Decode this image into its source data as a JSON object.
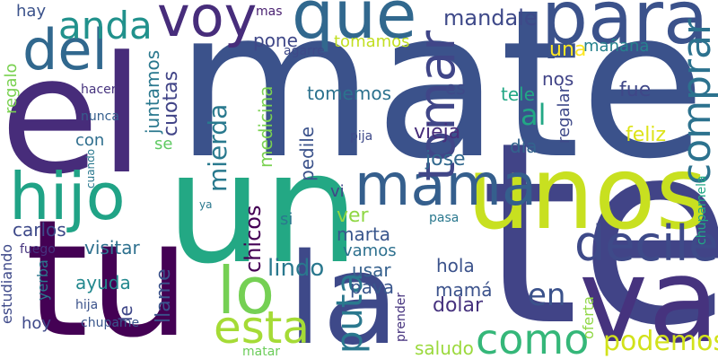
{
  "words": [
    {
      "id": "mate",
      "text": "mate",
      "color": "#3b528b"
    },
    {
      "id": "el",
      "text": "el",
      "color": "#472c7a"
    },
    {
      "id": "un",
      "text": "un",
      "color": "#23a884"
    },
    {
      "id": "te",
      "text": "te",
      "color": "#414487"
    },
    {
      "id": "tu",
      "text": "tu",
      "color": "#440154"
    },
    {
      "id": "unos",
      "text": "unos",
      "color": "#c8e020"
    },
    {
      "id": "la",
      "text": "la",
      "color": "#3e4989"
    },
    {
      "id": "va",
      "text": "va",
      "color": "#46337e"
    },
    {
      "id": "para",
      "text": "para",
      "color": "#3b528b"
    },
    {
      "id": "que",
      "text": "que",
      "color": "#31688e"
    },
    {
      "id": "voy",
      "text": "voy",
      "color": "#472d7b"
    },
    {
      "id": "del",
      "text": "del",
      "color": "#31688e"
    },
    {
      "id": "hijo",
      "text": "hijo",
      "color": "#20a386"
    },
    {
      "id": "mama",
      "text": "mama",
      "color": "#355f8d"
    },
    {
      "id": "lo",
      "text": "lo",
      "color": "#75d054"
    },
    {
      "id": "esta",
      "text": "esta",
      "color": "#a5db36"
    },
    {
      "id": "como",
      "text": "como",
      "color": "#35b779"
    },
    {
      "id": "decile",
      "text": "decile",
      "color": "#3e4a89"
    },
    {
      "id": "comprar",
      "text": "comprar",
      "color": "#2c728e"
    },
    {
      "id": "tomar",
      "text": "tomar",
      "color": "#404688"
    },
    {
      "id": "anda",
      "text": "anda",
      "color": "#21918c"
    },
    {
      "id": "puta",
      "text": "puta",
      "color": "#2a788e"
    },
    {
      "id": "podemos",
      "text": "podemos",
      "color": "#d2e21b"
    },
    {
      "id": "en",
      "text": "en",
      "color": "#3b528b"
    },
    {
      "id": "mierda",
      "text": "mierda",
      "color": "#29798e"
    },
    {
      "id": "al",
      "text": "al",
      "color": "#22a785"
    },
    {
      "id": "lindo",
      "text": "lindo",
      "color": "#2a788e"
    },
    {
      "id": "mandale",
      "text": "mandale",
      "color": "#3e4989"
    },
    {
      "id": "juntamos",
      "text": "juntamos",
      "color": "#2a788e"
    },
    {
      "id": "cuotas",
      "text": "cuotas",
      "color": "#414487"
    },
    {
      "id": "medicina",
      "text": "medicina",
      "color": "#7ad151"
    },
    {
      "id": "pedile",
      "text": "pedile",
      "color": "#3b528b"
    },
    {
      "id": "vieja",
      "text": "vieja",
      "color": "#472d7b"
    },
    {
      "id": "jose",
      "text": "jose",
      "color": "#31688e"
    },
    {
      "id": "chicos",
      "text": "chicos",
      "color": "#440154"
    },
    {
      "id": "marta",
      "text": "marta",
      "color": "#39568c"
    },
    {
      "id": "vamos",
      "text": "vamos",
      "color": "#2d708e"
    },
    {
      "id": "usar",
      "text": "usar",
      "color": "#35608d"
    },
    {
      "id": "pava",
      "text": "pava",
      "color": "#39568c"
    },
    {
      "id": "mama2",
      "text": "mamá",
      "color": "#3b528b"
    },
    {
      "id": "dolar",
      "text": "dolar",
      "color": "#46327e"
    },
    {
      "id": "hola",
      "text": "hola",
      "color": "#3b528b"
    },
    {
      "id": "saludo",
      "text": "saludo",
      "color": "#9bd93c"
    },
    {
      "id": "tomemos",
      "text": "tomemos",
      "color": "#2c728e"
    },
    {
      "id": "pone",
      "text": "pone",
      "color": "#3f4788"
    },
    {
      "id": "tomamos",
      "text": "tomamos",
      "color": "#c2df23"
    },
    {
      "id": "una",
      "text": "una",
      "color": "#fde725"
    },
    {
      "id": "manana",
      "text": "mañana",
      "color": "#26828e"
    },
    {
      "id": "nos",
      "text": "nos",
      "color": "#414487"
    },
    {
      "id": "es",
      "text": "es",
      "color": "#3e4a89"
    },
    {
      "id": "tele",
      "text": "tele",
      "color": "#22a785"
    },
    {
      "id": "regalar",
      "text": "regalar",
      "color": "#3e4989"
    },
    {
      "id": "fue",
      "text": "fue",
      "color": "#3f4788"
    },
    {
      "id": "feliz",
      "text": "feliz",
      "color": "#dde318"
    },
    {
      "id": "dia",
      "text": "dia",
      "color": "#33638d"
    },
    {
      "id": "con",
      "text": "con",
      "color": "#2e6e8e"
    },
    {
      "id": "se",
      "text": "se",
      "color": "#5ec962"
    },
    {
      "id": "hay",
      "text": "hay",
      "color": "#3b528b"
    },
    {
      "id": "mas",
      "text": "mas",
      "color": "#481f70"
    },
    {
      "id": "agarre",
      "text": "agarre",
      "color": "#3e4989"
    },
    {
      "id": "regalo",
      "text": "regalo",
      "color": "#7ad151"
    },
    {
      "id": "hacer",
      "text": "hacer",
      "color": "#46337e"
    },
    {
      "id": "nunca",
      "text": "nunca",
      "color": "#355f8d"
    },
    {
      "id": "cuando",
      "text": "cuando",
      "color": "#2a788e"
    },
    {
      "id": "ya",
      "text": "ya",
      "color": "#2a788e"
    },
    {
      "id": "pija",
      "text": "pija",
      "color": "#3e4989"
    },
    {
      "id": "vi",
      "text": "vi",
      "color": "#414487"
    },
    {
      "id": "si",
      "text": "si",
      "color": "#2a788e"
    },
    {
      "id": "ver",
      "text": "ver",
      "color": "#8fd744"
    },
    {
      "id": "carlos",
      "text": "carlos",
      "color": "#3e4989"
    },
    {
      "id": "visitar",
      "text": "visitar",
      "color": "#2d708e"
    },
    {
      "id": "fuego",
      "text": "fuego",
      "color": "#46337e"
    },
    {
      "id": "estudiando",
      "text": "estudiando",
      "color": "#3e4989"
    },
    {
      "id": "yerba",
      "text": "yerba",
      "color": "#2a788e"
    },
    {
      "id": "ayuda",
      "text": "ayuda",
      "color": "#23888e"
    },
    {
      "id": "le",
      "text": "le",
      "color": "#3f4788"
    },
    {
      "id": "llame",
      "text": "llame",
      "color": "#3b528b"
    },
    {
      "id": "hija",
      "text": "hija",
      "color": "#3b528b"
    },
    {
      "id": "hoy",
      "text": "hoy",
      "color": "#3e4989"
    },
    {
      "id": "chupame",
      "text": "chupame",
      "color": "#39568c"
    },
    {
      "id": "matar",
      "text": "matar",
      "color": "#6ccd5a"
    },
    {
      "id": "prender",
      "text": "prender",
      "color": "#46337e"
    },
    {
      "id": "pasa",
      "text": "pasa",
      "color": "#2a788e"
    },
    {
      "id": "oferta",
      "text": "oferta",
      "color": "#8fd744"
    },
    {
      "id": "chupamela",
      "text": "chupamela",
      "color": "#22a785"
    }
  ]
}
